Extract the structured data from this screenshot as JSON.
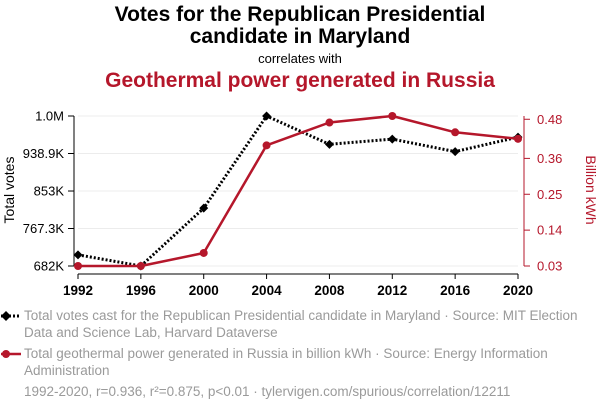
{
  "header": {
    "title_line1": "Votes for the Republican Presidential",
    "title_line2": "candidate in Maryland",
    "connector": "correlates with",
    "title2": "Geothermal power generated in Russia"
  },
  "chart_data": {
    "type": "line",
    "x": [
      1992,
      1996,
      2000,
      2004,
      2008,
      2012,
      2016,
      2020
    ],
    "x_tick_labels": [
      "1992",
      "1996",
      "2000",
      "2004",
      "2008",
      "2012",
      "2016",
      "2020"
    ],
    "series": [
      {
        "name": "Total votes cast for the Republican Presidential candidate in Maryland",
        "axis": "left",
        "color": "#000000",
        "style": "dotted",
        "marker": "diamond",
        "values": [
          707094,
          681530,
          813797,
          1024703,
          959862,
          971869,
          943169,
          976414
        ]
      },
      {
        "name": "Total geothermal power generated in Russia in billion kWh",
        "axis": "right",
        "color": "#b5172b",
        "style": "solid",
        "marker": "circle",
        "values": [
          0.03,
          0.03,
          0.07,
          0.4,
          0.47,
          0.49,
          0.44,
          0.42
        ]
      }
    ],
    "ylabel_left": "Total votes",
    "ylabel_right": "Billion kWh",
    "yticks_left": [
      "1.0M",
      "938.9K",
      "853K",
      "767.3K",
      "682K"
    ],
    "yticks_left_values": [
      1024703,
      938927,
      853077,
      767303,
      681530
    ],
    "ylim_left": [
      681530,
      1024703
    ],
    "yticks_right": [
      "0.48",
      "0.36",
      "0.25",
      "0.14",
      "0.03"
    ],
    "yticks_right_values": [
      0.48,
      0.36,
      0.25,
      0.14,
      0.03
    ],
    "ylim_right": [
      0.03,
      0.49
    ],
    "xlim": [
      1992,
      2020
    ],
    "grid": true
  },
  "legend": {
    "series1_text": "Total votes cast for the Republican Presidential candidate in Maryland · Source: MIT Election Data and Science Lab, Harvard Dataverse",
    "series2_text": "Total geothermal power generated in Russia in billion kWh · Source: Energy Information Administration"
  },
  "footer": "1992-2020, r=0.936, r²=0.875, p<0.01 · tylervigen.com/spurious/correlation/12211"
}
